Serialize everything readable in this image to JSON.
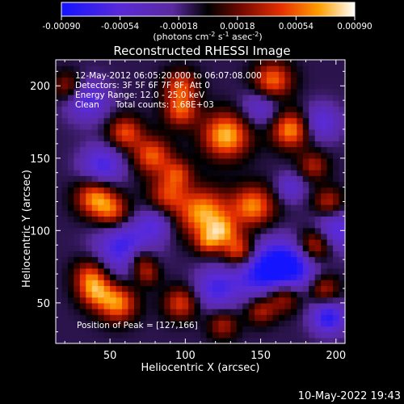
{
  "chart_data": {
    "type": "heatmap",
    "title": "Reconstructed RHESSI Image",
    "xlabel": "Heliocentric X (arcsec)",
    "ylabel": "Heliocentric Y (arcsec)",
    "xlim": [
      14,
      206
    ],
    "ylim": [
      22,
      218
    ],
    "xticks": [
      50,
      100,
      150,
      200
    ],
    "yticks": [
      50,
      100,
      150,
      200
    ],
    "colorbar": {
      "min": -0.0009,
      "max": 0.0009,
      "ticks": [
        "-0.00090",
        "-0.00054",
        "-0.00018",
        "0.00018",
        "0.00054",
        "0.00090"
      ],
      "tick_values": [
        -0.0009,
        -0.00054,
        -0.00018,
        0.00018,
        0.00054,
        0.0009
      ],
      "units_prefix": "(photons cm",
      "units_exp1": "-2",
      "units_mid": " s",
      "units_exp2": "-1",
      "units_mid2": " asec",
      "units_exp3": "-2",
      "units_suffix": ")"
    },
    "annotations": [
      "12-May-2012 06:05:20.000 to 06:07:08.000",
      "Detectors: 3F 5F 6F 7F 8F, Att 0",
      "Energy Range: 12.0 - 25.0 keV",
      "Clean      Total counts: 1.68E+03"
    ],
    "peak_label": "Position of Peak = [127,166]",
    "peak": [
      127,
      166
    ],
    "blobs": [
      {
        "x": 127,
        "y": 166,
        "v": 1.0,
        "r": 11
      },
      {
        "x": 112,
        "y": 112,
        "v": 0.95,
        "r": 12
      },
      {
        "x": 145,
        "y": 117,
        "v": 0.85,
        "r": 10
      },
      {
        "x": 170,
        "y": 170,
        "v": 0.9,
        "r": 9
      },
      {
        "x": 158,
        "y": 204,
        "v": 0.8,
        "r": 9
      },
      {
        "x": 60,
        "y": 168,
        "v": 0.7,
        "r": 8
      },
      {
        "x": 78,
        "y": 152,
        "v": 0.75,
        "r": 9
      },
      {
        "x": 97,
        "y": 183,
        "v": 0.7,
        "r": 8
      },
      {
        "x": 97,
        "y": 200,
        "v": 0.65,
        "r": 8
      },
      {
        "x": 88,
        "y": 125,
        "v": 0.6,
        "r": 9
      },
      {
        "x": 95,
        "y": 140,
        "v": 0.55,
        "r": 7
      },
      {
        "x": 40,
        "y": 123,
        "v": 0.85,
        "r": 9
      },
      {
        "x": 52,
        "y": 113,
        "v": 0.65,
        "r": 8
      },
      {
        "x": 125,
        "y": 100,
        "v": 0.6,
        "r": 7
      },
      {
        "x": 136,
        "y": 86,
        "v": 0.9,
        "r": 8
      },
      {
        "x": 115,
        "y": 92,
        "v": 0.55,
        "r": 6
      },
      {
        "x": 186,
        "y": 90,
        "v": 0.75,
        "r": 8
      },
      {
        "x": 195,
        "y": 120,
        "v": 0.55,
        "r": 7
      },
      {
        "x": 37,
        "y": 70,
        "v": 0.6,
        "r": 8
      },
      {
        "x": 40,
        "y": 58,
        "v": 0.7,
        "r": 8
      },
      {
        "x": 55,
        "y": 50,
        "v": 0.85,
        "r": 9
      },
      {
        "x": 70,
        "y": 80,
        "v": 0.6,
        "r": 7
      },
      {
        "x": 97,
        "y": 50,
        "v": 0.65,
        "r": 8
      },
      {
        "x": 150,
        "y": 45,
        "v": 0.55,
        "r": 7
      },
      {
        "x": 165,
        "y": 55,
        "v": 0.7,
        "r": 8
      },
      {
        "x": 192,
        "y": 60,
        "v": 0.55,
        "r": 7
      },
      {
        "x": 22,
        "y": 200,
        "v": 0.5,
        "r": 7
      },
      {
        "x": 185,
        "y": 145,
        "v": 0.5,
        "r": 7
      },
      {
        "x": 75,
        "y": 70,
        "v": 0.45,
        "r": 6
      },
      {
        "x": 125,
        "y": 35,
        "v": 0.5,
        "r": 7
      }
    ],
    "negative_blobs": [
      {
        "x": 60,
        "y": 88,
        "v": -0.75,
        "r": 13
      },
      {
        "x": 150,
        "y": 73,
        "v": -0.8,
        "r": 14
      },
      {
        "x": 170,
        "y": 75,
        "v": -0.85,
        "r": 12
      },
      {
        "x": 200,
        "y": 100,
        "v": -0.6,
        "r": 10
      },
      {
        "x": 45,
        "y": 145,
        "v": -0.65,
        "r": 10
      },
      {
        "x": 35,
        "y": 190,
        "v": -0.6,
        "r": 10
      },
      {
        "x": 190,
        "y": 175,
        "v": -0.55,
        "r": 9
      },
      {
        "x": 195,
        "y": 40,
        "v": -0.8,
        "r": 8
      },
      {
        "x": 120,
        "y": 60,
        "v": -0.6,
        "r": 10
      },
      {
        "x": 150,
        "y": 185,
        "v": -0.45,
        "r": 9
      },
      {
        "x": 80,
        "y": 105,
        "v": -0.45,
        "r": 8
      },
      {
        "x": 170,
        "y": 130,
        "v": -0.45,
        "r": 7
      }
    ]
  },
  "footer": {
    "timestamp": "10-May-2022 19:43"
  }
}
